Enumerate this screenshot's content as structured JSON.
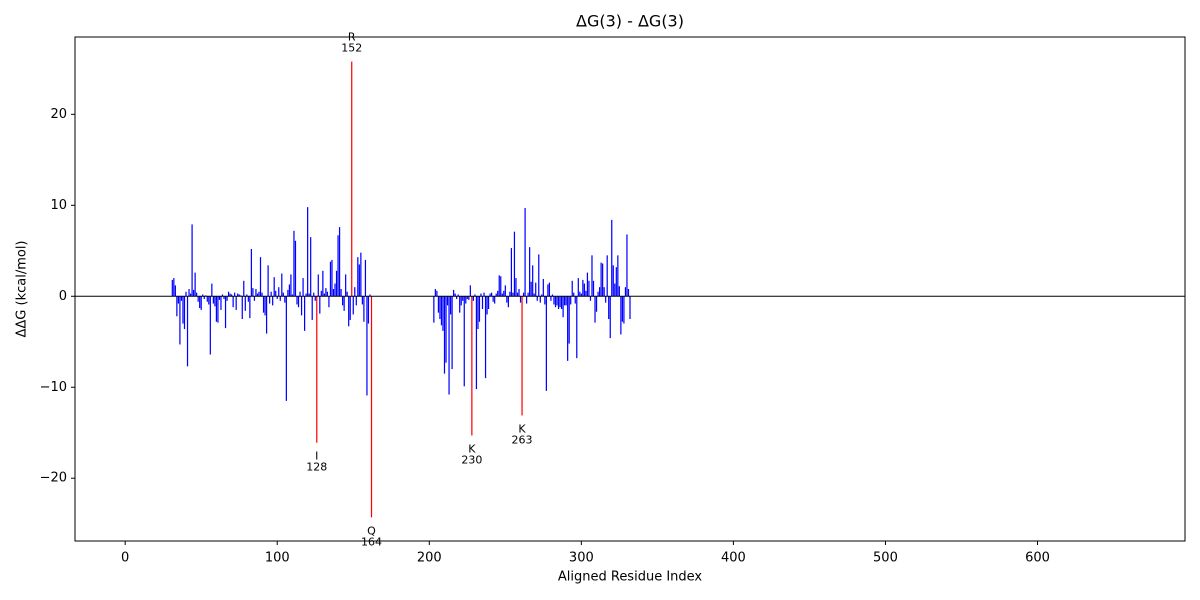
{
  "chart_data": {
    "type": "bar",
    "title": "ΔG(3) - ΔG(3)",
    "x_label": "Aligned Residue Index",
    "y_label": "ΔΔG (kcal/mol)",
    "color": "blue",
    "highlight_color": "red",
    "zero_line": true,
    "xlim": [
      -33,
      697
    ],
    "ylim": [
      -26.9,
      28.5
    ],
    "xticks": [
      0,
      100,
      200,
      300,
      400,
      500,
      600
    ],
    "yticks": [
      {
        "value": -20,
        "label": "−20"
      },
      {
        "value": -10,
        "label": "−10"
      },
      0,
      10,
      20
    ],
    "x": [
      31,
      32,
      33,
      34,
      35,
      36,
      37,
      38,
      39,
      40,
      41,
      42,
      43,
      44,
      45,
      46,
      47,
      48,
      49,
      50,
      51,
      52,
      53,
      54,
      55,
      56,
      57,
      58,
      59,
      60,
      61,
      62,
      63,
      64,
      65,
      66,
      67,
      68,
      69,
      70,
      71,
      72,
      73,
      74,
      75,
      76,
      77,
      78,
      79,
      80,
      81,
      82,
      83,
      84,
      85,
      86,
      87,
      88,
      89,
      90,
      91,
      92,
      93,
      94,
      95,
      96,
      97,
      98,
      99,
      100,
      101,
      102,
      103,
      104,
      105,
      106,
      107,
      108,
      109,
      110,
      111,
      112,
      113,
      114,
      115,
      116,
      117,
      118,
      119,
      120,
      121,
      122,
      123,
      124,
      125,
      126,
      127,
      128,
      129,
      130,
      131,
      132,
      133,
      134,
      135,
      136,
      137,
      138,
      139,
      140,
      141,
      142,
      143,
      144,
      145,
      146,
      147,
      148,
      149,
      150,
      151,
      152,
      153,
      154,
      155,
      156,
      157,
      158,
      159,
      160,
      161,
      162,
      203,
      204,
      205,
      206,
      207,
      208,
      209,
      210,
      211,
      212,
      213,
      214,
      215,
      216,
      217,
      218,
      219,
      220,
      221,
      222,
      223,
      224,
      225,
      226,
      227,
      228,
      229,
      230,
      231,
      232,
      233,
      234,
      235,
      236,
      237,
      238,
      239,
      240,
      241,
      242,
      243,
      244,
      245,
      246,
      247,
      248,
      249,
      250,
      251,
      252,
      253,
      254,
      255,
      256,
      257,
      258,
      259,
      260,
      261,
      262,
      263,
      264,
      265,
      266,
      267,
      268,
      269,
      270,
      271,
      272,
      273,
      274,
      275,
      276,
      277,
      278,
      279,
      280,
      281,
      282,
      283,
      284,
      285,
      286,
      287,
      288,
      289,
      290,
      291,
      292,
      293,
      294,
      295,
      296,
      297,
      298,
      299,
      300,
      301,
      302,
      303,
      304,
      305,
      306,
      307,
      308,
      309,
      310,
      311,
      312,
      313,
      314,
      315,
      316,
      317,
      318,
      319,
      320,
      321,
      322,
      323,
      324,
      325,
      326,
      327,
      328,
      329,
      330,
      331,
      332
    ],
    "values": [
      1.8,
      2.0,
      1.2,
      -2.2,
      -0.8,
      -5.3,
      -0.5,
      -3.0,
      -3.6,
      0.5,
      -7.7,
      0.8,
      0.3,
      7.9,
      0.7,
      2.6,
      0.4,
      -0.6,
      -1.3,
      -1.5,
      0.2,
      -0.3,
      0.1,
      -0.6,
      -0.9,
      -6.4,
      1.4,
      -0.8,
      -1.1,
      -2.8,
      -2.9,
      -0.4,
      -1.5,
      0.2,
      -0.3,
      -3.5,
      -0.5,
      0.5,
      0.3,
      0.2,
      -1.2,
      0.4,
      -1.5,
      0.3,
      0.2,
      0.1,
      -2.5,
      1.7,
      -1.6,
      0.2,
      -0.6,
      -2.4,
      5.2,
      0.9,
      -0.5,
      0.8,
      0.3,
      0.5,
      4.3,
      0.4,
      -1.8,
      -2.1,
      -4.1,
      3.4,
      -0.8,
      0.5,
      -1.0,
      2.1,
      0.6,
      -0.3,
      1.0,
      -0.5,
      2.5,
      0.4,
      -0.7,
      -11.5,
      0.7,
      1.3,
      2.4,
      0.2,
      7.2,
      6.1,
      -0.9,
      -1.2,
      0.5,
      -2.1,
      2.0,
      -3.8,
      0.3,
      9.8,
      0.3,
      6.5,
      -2.6,
      0.4,
      -0.5,
      -16.1,
      2.4,
      -1.9,
      0.6,
      2.8,
      0.3,
      0.9,
      0.5,
      -1.2,
      3.8,
      4.0,
      0.8,
      1.4,
      2.8,
      6.7,
      7.6,
      0.8,
      -1.0,
      -1.6,
      2.4,
      0.5,
      -3.3,
      -2.6,
      25.8,
      -2.0,
      1.0,
      -1.0,
      4.3,
      3.5,
      4.8,
      -0.9,
      -2.8,
      4.0,
      -10.9,
      -3.0,
      0.2,
      -24.3,
      -2.9,
      0.8,
      0.6,
      -1.8,
      -2.5,
      -3.2,
      -3.8,
      -8.5,
      -7.3,
      -1.0,
      -10.8,
      -2.0,
      -8.0,
      0.7,
      0.3,
      -0.3,
      0.2,
      -1.8,
      -1.0,
      -0.5,
      -9.9,
      -0.8,
      -0.3,
      -0.4,
      1.2,
      -15.3,
      -0.5,
      0.2,
      -10.2,
      -3.6,
      -2.8,
      0.3,
      -1.4,
      0.4,
      -9.0,
      -2.0,
      -1.4,
      0.3,
      0.4,
      -0.6,
      -0.8,
      0.3,
      0.6,
      2.3,
      2.2,
      0.3,
      0.6,
      1.2,
      -0.7,
      -1.2,
      0.5,
      5.3,
      0.4,
      7.1,
      2.0,
      0.4,
      0.8,
      -0.7,
      -13.1,
      0.4,
      9.7,
      -0.8,
      0.4,
      5.4,
      1.6,
      3.4,
      0.3,
      1.5,
      -0.5,
      4.6,
      -0.7,
      0.2,
      1.9,
      -0.9,
      -10.4,
      1.3,
      1.5,
      -0.5,
      0.2,
      -0.9,
      -1.2,
      -1.0,
      -1.4,
      -1.2,
      -1.4,
      -2.3,
      -1.0,
      -1.0,
      -7.1,
      -5.2,
      -0.9,
      1.7,
      0.4,
      -0.8,
      -6.8,
      2.0,
      0.5,
      0.3,
      1.8,
      1.4,
      0.6,
      2.6,
      1.7,
      -0.5,
      4.5,
      1.7,
      -2.9,
      -1.7,
      0.5,
      1.0,
      3.7,
      3.6,
      1.0,
      -0.7,
      4.5,
      -2.5,
      -4.6,
      8.4,
      3.4,
      1.4,
      3.2,
      4.5,
      1.1,
      -4.2,
      -2.8,
      -3.0,
      1.0,
      6.8,
      0.8,
      -2.5
    ],
    "annotations": [
      {
        "x": 126,
        "residue": "I",
        "number": "128"
      },
      {
        "x": 149,
        "residue": "R",
        "number": "152"
      },
      {
        "x": 162,
        "residue": "Q",
        "number": "164"
      },
      {
        "x": 228,
        "residue": "K",
        "number": "230"
      },
      {
        "x": 261,
        "residue": "K",
        "number": "263"
      }
    ]
  }
}
